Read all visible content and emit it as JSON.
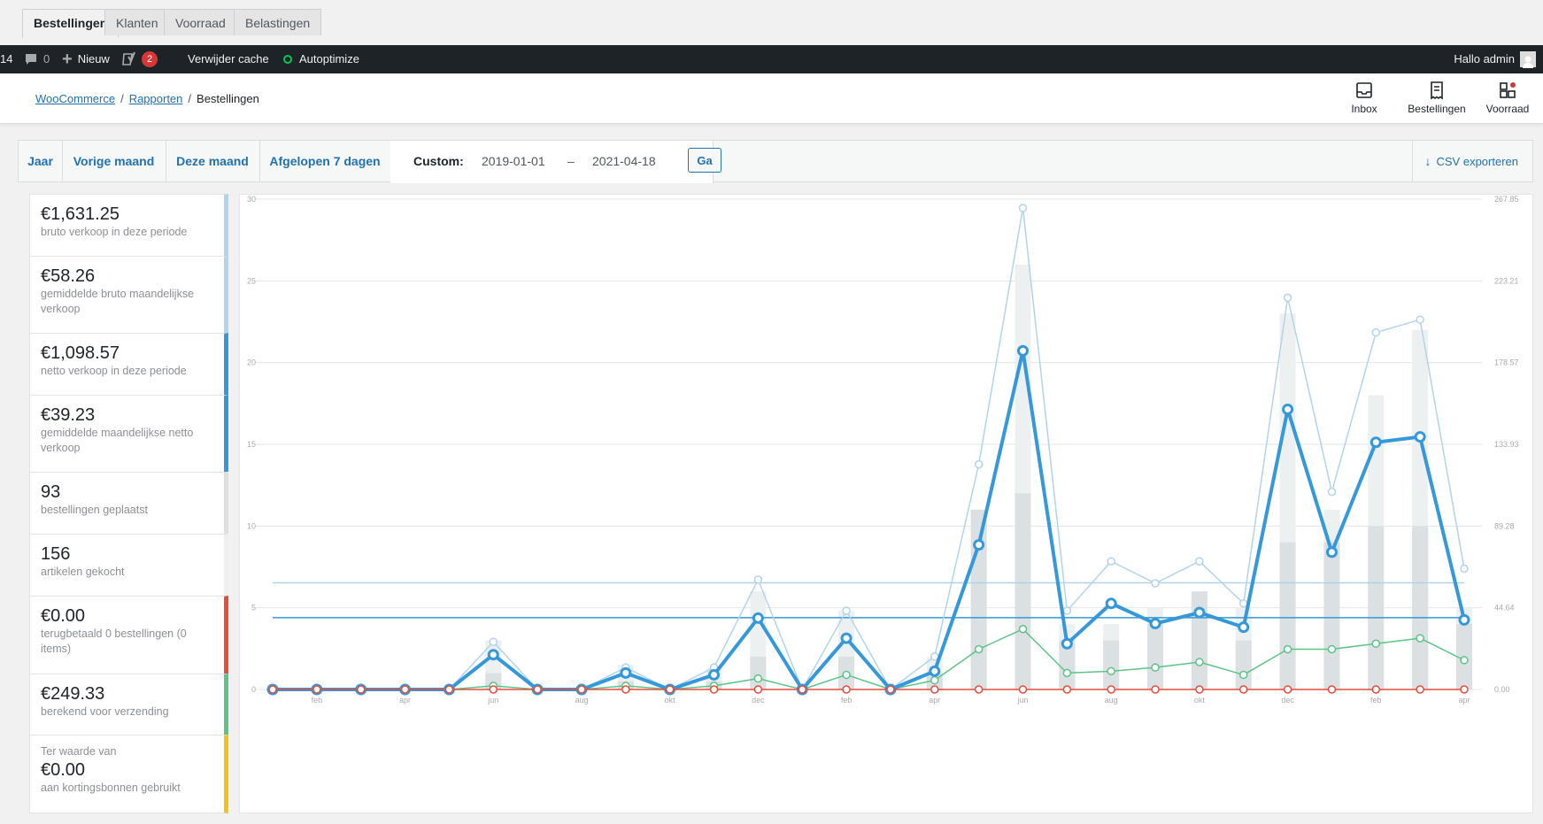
{
  "tabs": [
    "Bestellingen",
    "Klanten",
    "Voorraad",
    "Belastingen"
  ],
  "adminbar": {
    "partial_number": "14",
    "comments_count": "0",
    "new_label": "Nieuw",
    "yoast_badge": "2",
    "cache_label": "Verwijder cache",
    "autoptimize_label": "Autoptimize",
    "greeting": "Hallo admin"
  },
  "breadcrumb": {
    "root": "WooCommerce",
    "parent": "Rapporten",
    "current": "Bestellingen"
  },
  "header_buttons": {
    "inbox": "Inbox",
    "orders": "Bestellingen",
    "stock": "Voorraad"
  },
  "range": {
    "year": "Jaar",
    "last_month": "Vorige maand",
    "this_month": "Deze maand",
    "last_7_days": "Afgelopen 7 dagen",
    "custom_label": "Custom:",
    "start_date": "2019-01-01",
    "dash": "–",
    "end_date": "2021-04-18",
    "go_label": "Ga",
    "csv_label": "CSV exporteren"
  },
  "colors": {
    "gross": "#b1d4ea",
    "net": "#3498db",
    "orders": "#dbe1e3",
    "items": "#ecf0f1",
    "refunds": "#e74c3c",
    "shipping": "#5cc488",
    "coupons": "#f1c40f"
  },
  "legend": [
    {
      "value": "€1,631.25",
      "desc": "bruto verkoop in deze periode",
      "color": "#b1d4ea"
    },
    {
      "value": "€58.26",
      "desc": "gemiddelde bruto maandelijkse verkoop",
      "color": "#b1d4ea"
    },
    {
      "value": "€1,098.57",
      "desc": "netto verkoop in deze periode",
      "color": "#3498db"
    },
    {
      "value": "€39.23",
      "desc": "gemiddelde maandelijkse netto verkoop",
      "color": "#3498db"
    },
    {
      "value": "93",
      "desc": "bestellingen geplaatst",
      "color": "#dbe1e3"
    },
    {
      "value": "156",
      "desc": "artikelen gekocht",
      "color": "#ecf0f1"
    },
    {
      "value": "€0.00",
      "desc": "terugbetaald 0 bestellingen (0 items)",
      "color": "#e74c3c"
    },
    {
      "value": "€249.33",
      "desc": "berekend voor verzending",
      "color": "#5cc488"
    },
    {
      "pre": "Ter waarde van",
      "value": "€0.00",
      "desc": "aan kortingsbonnen gebruikt",
      "color": "#f1c40f"
    }
  ],
  "chart_data": {
    "type": "bar+line",
    "x_tick_labels": [
      "feb",
      "apr",
      "jun",
      "aug",
      "okt",
      "dec",
      "feb",
      "apr",
      "jun",
      "aug",
      "okt",
      "dec",
      "feb",
      "apr"
    ],
    "y_left": {
      "ticks": [
        "0",
        "5",
        "10",
        "15",
        "20",
        "25",
        "30"
      ],
      "range": [
        0,
        30
      ]
    },
    "y_right": {
      "ticks": [
        "0.00",
        "44.64",
        "89.28",
        "133.93",
        "178.57",
        "223.21",
        "267.85"
      ],
      "range": [
        0,
        267.85
      ]
    },
    "months": [
      "2019-01",
      "2019-02",
      "2019-03",
      "2019-04",
      "2019-05",
      "2019-06",
      "2019-07",
      "2019-08",
      "2019-09",
      "2019-10",
      "2019-11",
      "2019-12",
      "2020-01",
      "2020-02",
      "2020-03",
      "2020-04",
      "2020-05",
      "2020-06",
      "2020-07",
      "2020-08",
      "2020-09",
      "2020-10",
      "2020-11",
      "2020-12",
      "2021-01",
      "2021-02",
      "2021-03",
      "2021-04"
    ],
    "series": [
      {
        "values": [
          0,
          0,
          0,
          0,
          0,
          3,
          0,
          0,
          1.5,
          0,
          1.3,
          6,
          0,
          4.8,
          0,
          2,
          11,
          26,
          4,
          4,
          5,
          6,
          5,
          23,
          11,
          18,
          22,
          5
        ]
      },
      {
        "values": [
          0,
          0,
          0,
          0,
          0,
          1,
          0,
          0,
          0.5,
          0,
          0.5,
          2,
          0,
          2,
          0,
          1,
          11,
          12,
          3,
          3,
          4,
          6,
          3,
          9,
          9,
          10,
          10,
          4
        ]
      },
      {
        "values": [
          0,
          0,
          0,
          0,
          0,
          26,
          0,
          0,
          12,
          0,
          12,
          60,
          0,
          43,
          0,
          18,
          123,
          263,
          43,
          70,
          58,
          70,
          47,
          214,
          108,
          195,
          202,
          66
        ]
      },
      {
        "values": [
          0,
          0,
          0,
          0,
          0,
          19,
          0,
          0,
          9,
          0,
          8,
          39,
          0,
          28,
          0,
          10,
          79,
          185,
          25,
          47,
          36,
          42,
          34,
          153,
          75,
          135,
          138,
          38
        ]
      },
      {
        "values": [
          0,
          0,
          0,
          0,
          0,
          2,
          0,
          0,
          2,
          0,
          2,
          6,
          0,
          8,
          0,
          5,
          22,
          33,
          9,
          10,
          12,
          15,
          8,
          22,
          22,
          25,
          28,
          16
        ]
      },
      {
        "values": [
          0,
          0,
          0,
          0,
          0,
          0,
          0,
          0,
          0,
          0,
          0,
          0,
          0,
          0,
          0,
          0,
          0,
          0,
          0,
          0,
          0,
          0,
          0,
          0,
          0,
          0,
          0,
          0
        ]
      }
    ],
    "avg_gross": 58.26,
    "avg_net": 39.23
  }
}
